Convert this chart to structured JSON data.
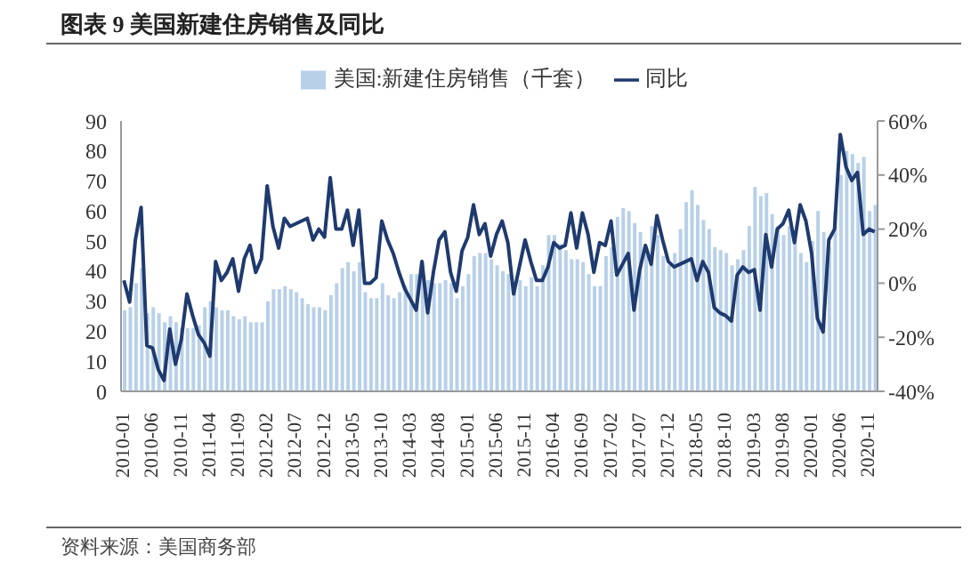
{
  "chart_data": {
    "type": "bar",
    "title": "图表 9  美国新建住房销售及同比",
    "annotations": [
      "资料来源：美国商务部"
    ],
    "legend": "top",
    "categories": [
      "2010-01",
      null,
      null,
      null,
      null,
      "2010-06",
      null,
      null,
      null,
      null,
      "2010-11",
      null,
      null,
      null,
      null,
      "2011-04",
      null,
      null,
      null,
      null,
      "2011-09",
      null,
      null,
      null,
      null,
      "2012-02",
      null,
      null,
      null,
      null,
      "2012-07",
      null,
      null,
      null,
      null,
      "2012-12",
      null,
      null,
      null,
      null,
      "2013-05",
      null,
      null,
      null,
      null,
      "2013-10",
      null,
      null,
      null,
      null,
      "2014-03",
      null,
      null,
      null,
      null,
      "2014-08",
      null,
      null,
      null,
      null,
      "2015-01",
      null,
      null,
      null,
      null,
      "2015-06",
      null,
      null,
      null,
      null,
      "2015-11",
      null,
      null,
      null,
      null,
      "2016-04",
      null,
      null,
      null,
      null,
      "2016-09",
      null,
      null,
      null,
      null,
      "2017-02",
      null,
      null,
      null,
      null,
      "2017-07",
      null,
      null,
      null,
      null,
      "2017-12",
      null,
      null,
      null,
      null,
      "2018-05",
      null,
      null,
      null,
      null,
      "2018-10",
      null,
      null,
      null,
      null,
      "2019-03",
      null,
      null,
      null,
      null,
      "2019-08",
      null,
      null,
      null,
      null,
      "2020-01",
      null,
      null,
      null,
      null,
      "2020-06",
      null,
      null,
      null,
      null,
      "2020-11",
      null
    ],
    "series": [
      {
        "name": "美国:新建住房销售（千套）",
        "color": "#b8d0e8",
        "values": [
          27,
          28,
          36,
          41,
          26,
          28,
          26,
          23,
          25,
          23,
          21,
          21,
          21,
          22,
          28,
          30,
          28,
          27,
          27,
          25,
          24,
          25,
          23,
          23,
          23,
          30,
          34,
          34,
          35,
          34,
          33,
          31,
          29,
          28,
          28,
          27,
          32,
          36,
          41,
          43,
          40,
          43,
          33,
          31,
          31,
          36,
          32,
          31,
          33,
          35,
          39,
          39,
          43,
          37,
          36,
          36,
          37,
          36,
          31,
          35,
          39,
          45,
          46,
          46,
          44,
          42,
          40,
          39,
          34,
          37,
          35,
          38,
          35,
          42,
          52,
          52,
          49,
          47,
          44,
          44,
          43,
          39,
          35,
          35,
          45,
          48,
          58,
          61,
          60,
          56,
          53,
          47,
          55,
          52,
          45,
          42,
          46,
          54,
          63,
          67,
          62,
          57,
          54,
          48,
          47,
          46,
          42,
          44,
          47,
          55,
          68,
          65,
          66,
          59,
          55,
          52,
          55,
          53,
          46,
          43,
          50,
          60,
          53,
          48,
          60,
          72,
          80,
          79,
          76,
          78,
          60,
          62
        ]
      },
      {
        "name": "同比",
        "type": "line",
        "axis": "y2",
        "color": "#1f3a6e",
        "values": [
          1,
          -7,
          16,
          28,
          -23,
          -24,
          -32,
          -36,
          -17,
          -30,
          -21,
          -4,
          -12,
          -19,
          -22,
          -27,
          8,
          1,
          4,
          9,
          -3,
          9,
          14,
          4,
          9,
          36,
          21,
          13,
          24,
          21,
          22,
          23,
          24,
          16,
          20,
          17,
          39,
          20,
          20,
          27,
          14,
          27,
          0,
          0,
          2,
          23,
          16,
          11,
          4,
          -2,
          -6,
          -10,
          8,
          -11,
          4,
          16,
          19,
          4,
          -3,
          12,
          17,
          29,
          18,
          22,
          10,
          18,
          23,
          15,
          -4,
          6,
          16,
          8,
          1,
          1,
          6,
          15,
          13,
          14,
          26,
          13,
          26,
          18,
          4,
          15,
          14,
          23,
          3,
          7,
          11,
          -10,
          5,
          14,
          7,
          25,
          16,
          8,
          6,
          7,
          8,
          9,
          1,
          8,
          4,
          -9,
          -11,
          -12,
          -14,
          3,
          6,
          4,
          5,
          -10,
          18,
          6,
          20,
          22,
          27,
          15,
          29,
          23,
          11,
          -13,
          -18,
          16,
          20,
          55,
          43,
          38,
          41,
          18,
          20,
          19
        ]
      }
    ],
    "ylim": [
      0,
      90
    ],
    "yticks": [
      0,
      10,
      20,
      30,
      40,
      50,
      60,
      70,
      80,
      90
    ],
    "y2lim": [
      -40,
      60
    ],
    "y2ticks": [
      {
        "value": -40,
        "label": "-40%"
      },
      {
        "value": -20,
        "label": "-20%"
      },
      {
        "value": 0,
        "label": "0%"
      },
      {
        "value": 20,
        "label": "20%"
      },
      {
        "value": 40,
        "label": "40%"
      },
      {
        "value": 60,
        "label": "60%"
      }
    ]
  }
}
